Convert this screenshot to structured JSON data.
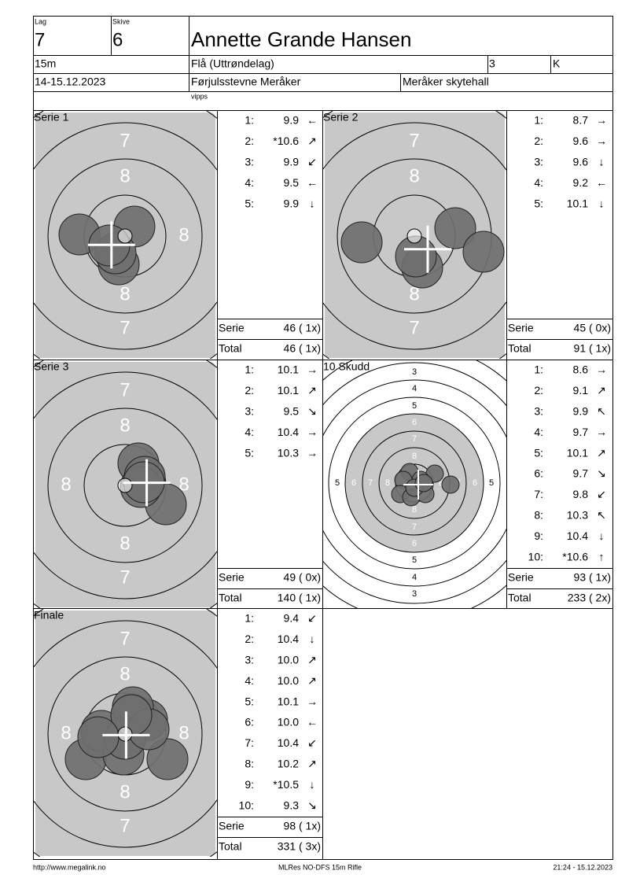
{
  "header": {
    "lag_label": "Lag",
    "lag": "7",
    "skive_label": "Skive",
    "skive": "6",
    "name": "Annette Grande Hansen",
    "distance": "15m",
    "club": "Flå (Uttrøndelag)",
    "number": "3",
    "class": "K",
    "date": "14-15.12.2023",
    "event": "Førjulsstevne Meråker",
    "venue": "Meråker skytehall",
    "note": "vipps"
  },
  "panels": [
    {
      "title": "Serie 1",
      "labels": [
        "7",
        "8",
        null,
        "8",
        "8",
        "7"
      ],
      "shots": [
        {
          "n": "1:",
          "value": "9.9",
          "arrow": "←"
        },
        {
          "n": "2:",
          "value": "*10.6",
          "arrow": "↗"
        },
        {
          "n": "3:",
          "value": "9.9",
          "arrow": "↙"
        },
        {
          "n": "4:",
          "value": "9.5",
          "arrow": "←"
        },
        {
          "n": "5:",
          "value": "9.9",
          "arrow": "↓"
        }
      ],
      "serie_label": "Serie",
      "serie": "46 ( 1x)",
      "total_label": "Total",
      "total": "46 ( 1x)"
    },
    {
      "title": "Serie 2",
      "labels": [
        "7",
        "8",
        null,
        null,
        "8",
        "7"
      ],
      "shots": [
        {
          "n": "1:",
          "value": "8.7",
          "arrow": "→"
        },
        {
          "n": "2:",
          "value": "9.6",
          "arrow": "→"
        },
        {
          "n": "3:",
          "value": "9.6",
          "arrow": "↓"
        },
        {
          "n": "4:",
          "value": "9.2",
          "arrow": "←"
        },
        {
          "n": "5:",
          "value": "10.1",
          "arrow": "↓"
        }
      ],
      "serie_label": "Serie",
      "serie": "45 ( 0x)",
      "total_label": "Total",
      "total": "91 ( 1x)"
    },
    {
      "title": "Serie 3",
      "labels": [
        "7",
        "8",
        "8",
        "8",
        "8",
        "7"
      ],
      "shots": [
        {
          "n": "1:",
          "value": "10.1",
          "arrow": "→"
        },
        {
          "n": "2:",
          "value": "10.1",
          "arrow": "↗"
        },
        {
          "n": "3:",
          "value": "9.5",
          "arrow": "↘"
        },
        {
          "n": "4:",
          "value": "10.4",
          "arrow": "→"
        },
        {
          "n": "5:",
          "value": "10.3",
          "arrow": "→"
        }
      ],
      "serie_label": "Serie",
      "serie": "49 ( 0x)",
      "total_label": "Total",
      "total": "140 ( 1x)"
    },
    {
      "title": "10 Skudd",
      "ring_numbers": [
        "3",
        "4",
        "5",
        "6",
        "7",
        "8"
      ],
      "shots": [
        {
          "n": "1:",
          "value": "8.6",
          "arrow": "→"
        },
        {
          "n": "2:",
          "value": "9.1",
          "arrow": "↗"
        },
        {
          "n": "3:",
          "value": "9.9",
          "arrow": "↖"
        },
        {
          "n": "4:",
          "value": "9.7",
          "arrow": "→"
        },
        {
          "n": "5:",
          "value": "10.1",
          "arrow": "↗"
        },
        {
          "n": "6:",
          "value": "9.7",
          "arrow": "↘"
        },
        {
          "n": "7:",
          "value": "9.8",
          "arrow": "↙"
        },
        {
          "n": "8:",
          "value": "10.3",
          "arrow": "↖"
        },
        {
          "n": "9:",
          "value": "10.4",
          "arrow": "↓"
        },
        {
          "n": "10:",
          "value": "*10.6",
          "arrow": "↑"
        }
      ],
      "serie_label": "Serie",
      "serie": "93 ( 1x)",
      "total_label": "Total",
      "total": "233 ( 2x)"
    },
    {
      "title": "Finale",
      "labels": [
        "7",
        "8",
        "8",
        "8",
        "8",
        "7"
      ],
      "shots": [
        {
          "n": "1:",
          "value": "9.4",
          "arrow": "↙"
        },
        {
          "n": "2:",
          "value": "10.4",
          "arrow": "↓"
        },
        {
          "n": "3:",
          "value": "10.0",
          "arrow": "↗"
        },
        {
          "n": "4:",
          "value": "10.0",
          "arrow": "↗"
        },
        {
          "n": "5:",
          "value": "10.1",
          "arrow": "→"
        },
        {
          "n": "6:",
          "value": "10.0",
          "arrow": "←"
        },
        {
          "n": "7:",
          "value": "10.4",
          "arrow": "↙"
        },
        {
          "n": "8:",
          "value": "10.2",
          "arrow": "↗"
        },
        {
          "n": "9:",
          "value": "*10.5",
          "arrow": "↓"
        },
        {
          "n": "10:",
          "value": "9.3",
          "arrow": "↘"
        }
      ],
      "serie_label": "Serie",
      "serie": "98 ( 1x)",
      "total_label": "Total",
      "total": "331 ( 3x)"
    }
  ],
  "footer": {
    "left": "http://www.megalink.no",
    "center": "MLRes NO-DFS 15m Rifle",
    "right": "21:24 - 15.12.2023"
  }
}
